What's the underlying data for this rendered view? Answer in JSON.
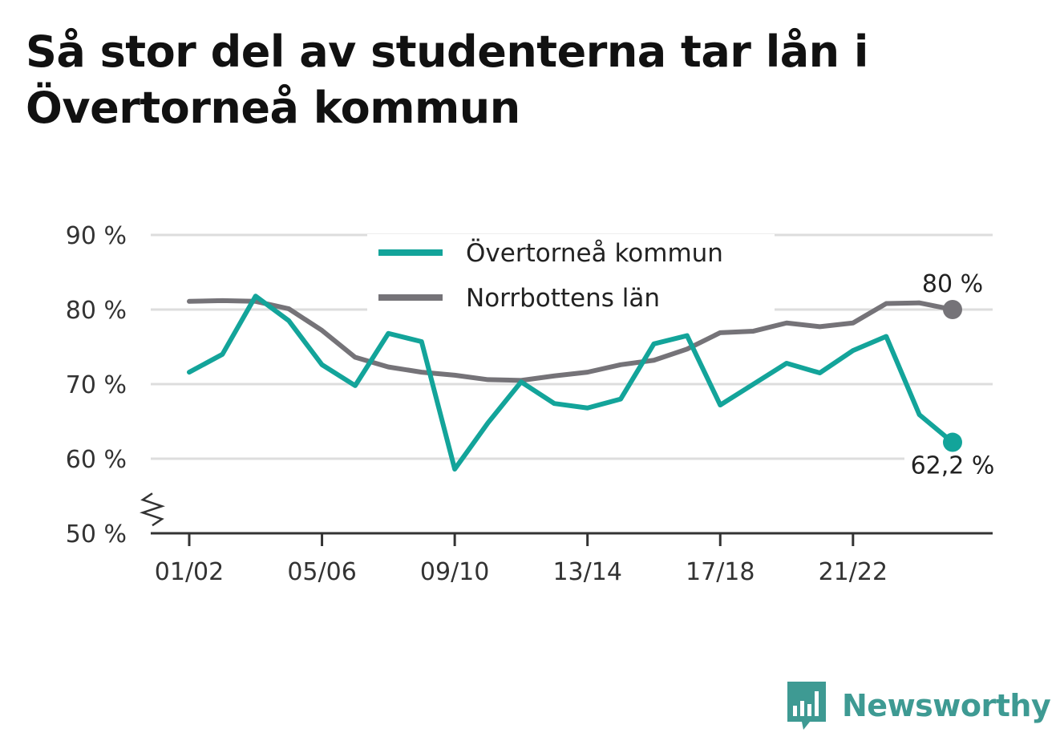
{
  "title": "Så stor del av studenterna tar lån i Övertorneå kommun",
  "brand": {
    "name": "Newsworthy",
    "icon": "bar-chart-speech-bubble-icon",
    "color": "#3e9a93"
  },
  "chart_data": {
    "type": "line",
    "title": "Så stor del av studenterna tar lån i Övertorneå kommun",
    "xlabel": "",
    "ylabel": "",
    "x": [
      "01/02",
      "02/03",
      "03/04",
      "04/05",
      "05/06",
      "06/07",
      "07/08",
      "08/09",
      "09/10",
      "10/11",
      "11/12",
      "12/13",
      "13/14",
      "14/15",
      "15/16",
      "16/17",
      "17/18",
      "18/19",
      "19/20",
      "20/21",
      "21/22",
      "22/23",
      "23/24",
      "24/25"
    ],
    "x_ticks": [
      "01/02",
      "05/06",
      "09/10",
      "13/14",
      "17/18",
      "21/22"
    ],
    "y_ticks": [
      {
        "value": 50,
        "label": "50 %"
      },
      {
        "value": 60,
        "label": "60 %"
      },
      {
        "value": 70,
        "label": "70 %"
      },
      {
        "value": 80,
        "label": "80 %"
      },
      {
        "value": 90,
        "label": "90 %"
      }
    ],
    "ylim": [
      50,
      90
    ],
    "y_axis_break": true,
    "grid": true,
    "legend_position": "top-center",
    "series": [
      {
        "name": "Övertorneå kommun",
        "color": "#13a49a",
        "values": [
          71.6,
          74.0,
          81.8,
          78.5,
          72.6,
          69.8,
          76.8,
          75.7,
          58.6,
          64.8,
          70.3,
          67.4,
          66.8,
          68.0,
          75.4,
          76.5,
          67.2,
          70.0,
          72.8,
          71.5,
          74.5,
          76.4,
          65.9,
          62.2
        ],
        "end_label": "62,2 %"
      },
      {
        "name": "Norrbottens län",
        "color": "#757378",
        "values": [
          81.1,
          81.2,
          81.1,
          80.1,
          77.2,
          73.6,
          72.3,
          71.6,
          71.2,
          70.6,
          70.5,
          71.1,
          71.6,
          72.6,
          73.2,
          74.7,
          76.9,
          77.1,
          78.2,
          77.7,
          78.2,
          80.8,
          80.9,
          80.0
        ],
        "end_label": "80 %"
      }
    ]
  }
}
